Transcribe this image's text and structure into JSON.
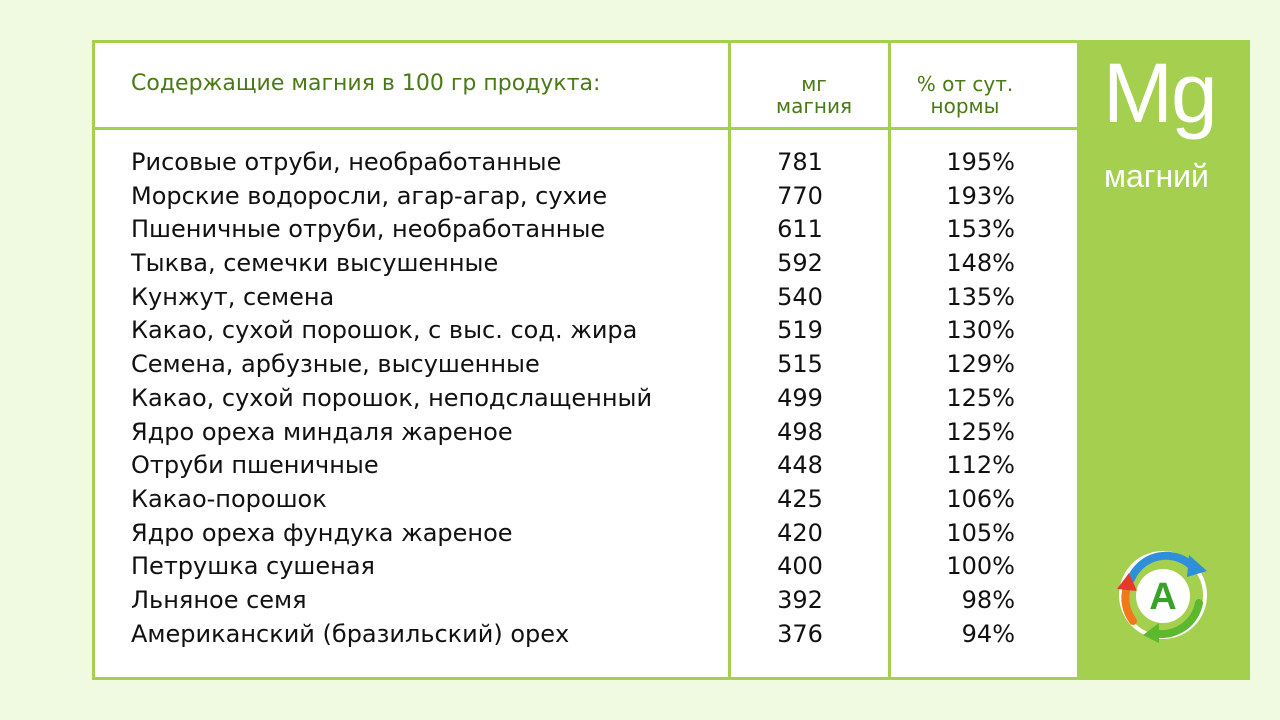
{
  "table": {
    "heading": "Содержащие магния в 100 гр продукта:",
    "col_mg": [
      "мг",
      "магния"
    ],
    "col_pct": [
      "% от сут.",
      "нормы"
    ],
    "rows": [
      {
        "name": "Рисовые отруби, необработанные",
        "mg": "781",
        "pct": "195%"
      },
      {
        "name": "Морские водоросли, агар-агар, сухие",
        "mg": "770",
        "pct": "193%"
      },
      {
        "name": "Пшеничные отруби, необработанные",
        "mg": "611",
        "pct": "153%"
      },
      {
        "name": "Тыква, семечки высушенные",
        "mg": "592",
        "pct": "148%"
      },
      {
        "name": "Кунжут, семена",
        "mg": "540",
        "pct": "135%"
      },
      {
        "name": "Какао, сухой порошок, с выс. сод. жира",
        "mg": "519",
        "pct": "130%"
      },
      {
        "name": "Семена, арбузные, высушенные",
        "mg": "515",
        "pct": "129%"
      },
      {
        "name": "Какао, сухой порошок, неподслащенный",
        "mg": "499",
        "pct": "125%"
      },
      {
        "name": "Ядро ореха миндаля жареное",
        "mg": "498",
        "pct": "125%"
      },
      {
        "name": "Отруби пшеничные",
        "mg": "448",
        "pct": "112%"
      },
      {
        "name": "Какао-порошок",
        "mg": "425",
        "pct": "106%"
      },
      {
        "name": "Ядро ореха фундука жареное",
        "mg": "420",
        "pct": "105%"
      },
      {
        "name": "Петрушка сушеная",
        "mg": "400",
        "pct": "100%"
      },
      {
        "name": "Льняное семя",
        "mg": "392",
        "pct": "98%"
      },
      {
        "name": "Американский (бразильский) орех",
        "mg": "376",
        "pct": "94%"
      }
    ]
  },
  "element": {
    "symbol": "Mg",
    "name": "магний"
  },
  "logo": {
    "letter": "A",
    "icon": "recycle-arrows-icon"
  },
  "colors": {
    "accent": "#a4cf4f",
    "heading": "#4a7a16",
    "background": "#f0fae0"
  }
}
